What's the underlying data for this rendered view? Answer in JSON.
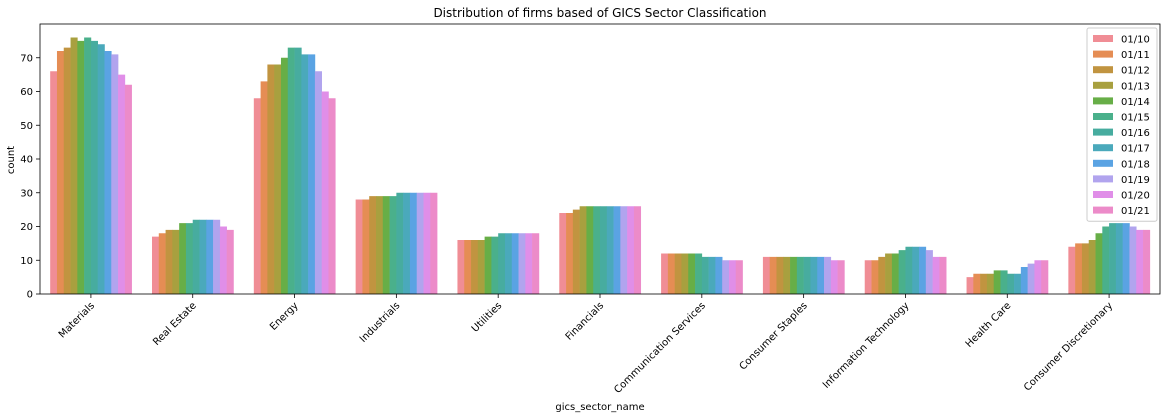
{
  "chart_data": {
    "type": "bar",
    "title": "Distribution of firms based of GICS Sector Classification",
    "xlabel": "gics_sector_name",
    "ylabel": "count",
    "ylim": [
      0,
      80
    ],
    "yticks": [
      0,
      10,
      20,
      30,
      40,
      50,
      60,
      70
    ],
    "grid": false,
    "legend_position": "top-right",
    "categories": [
      "Materials",
      "Real Estate",
      "Energy",
      "Industrials",
      "Utilities",
      "Financials",
      "Communication Services",
      "Consumer Staples",
      "Information Technology",
      "Health Care",
      "Consumer Discretionary"
    ],
    "series": [
      {
        "name": "01/10",
        "color": "#f08d95",
        "values": [
          66,
          17,
          58,
          28,
          16,
          24,
          12,
          11,
          10,
          5,
          14
        ]
      },
      {
        "name": "01/11",
        "color": "#e58d54",
        "values": [
          72,
          18,
          63,
          28,
          16,
          24,
          12,
          11,
          10,
          6,
          15
        ]
      },
      {
        "name": "01/12",
        "color": "#c19440",
        "values": [
          73,
          19,
          68,
          29,
          16,
          25,
          12,
          11,
          11,
          6,
          15
        ]
      },
      {
        "name": "01/13",
        "color": "#a8a03f",
        "values": [
          76,
          19,
          68,
          29,
          16,
          26,
          12,
          11,
          12,
          6,
          16
        ]
      },
      {
        "name": "01/14",
        "color": "#67ae47",
        "values": [
          75,
          21,
          70,
          29,
          17,
          26,
          12,
          11,
          12,
          7,
          18
        ]
      },
      {
        "name": "01/15",
        "color": "#4ab08b",
        "values": [
          76,
          21,
          73,
          29,
          17,
          26,
          12,
          11,
          13,
          7,
          20
        ]
      },
      {
        "name": "01/16",
        "color": "#47ac9f",
        "values": [
          75,
          22,
          73,
          30,
          18,
          26,
          11,
          11,
          14,
          6,
          21
        ]
      },
      {
        "name": "01/17",
        "color": "#4aa9bb",
        "values": [
          74,
          22,
          71,
          30,
          18,
          26,
          11,
          11,
          14,
          6,
          21
        ]
      },
      {
        "name": "01/18",
        "color": "#5aa3e3",
        "values": [
          72,
          22,
          71,
          30,
          18,
          26,
          11,
          11,
          14,
          8,
          21
        ]
      },
      {
        "name": "01/19",
        "color": "#b1a4ee",
        "values": [
          71,
          22,
          66,
          30,
          18,
          26,
          10,
          11,
          13,
          9,
          20
        ]
      },
      {
        "name": "01/20",
        "color": "#e08ee8",
        "values": [
          65,
          20,
          60,
          30,
          18,
          26,
          10,
          10,
          11,
          10,
          19
        ]
      },
      {
        "name": "01/21",
        "color": "#ec8bc9",
        "values": [
          62,
          19,
          58,
          30,
          18,
          26,
          10,
          10,
          11,
          10,
          19
        ]
      }
    ]
  }
}
